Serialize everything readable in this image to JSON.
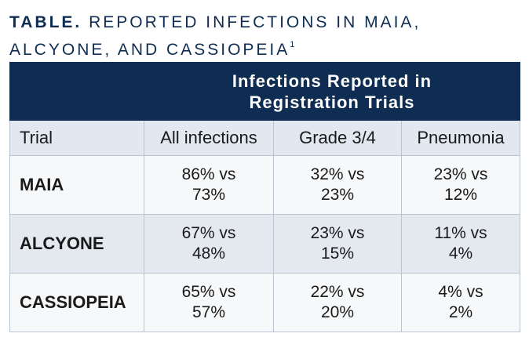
{
  "caption": {
    "lead": "TABLE.",
    "title": "REPORTED INFECTIONS IN MAIA, ALCYONE, AND CASSIOPEIA",
    "footnote": "1"
  },
  "table": {
    "group_header": "Infections Reported in Registration Trials",
    "columns": [
      "Trial",
      "All infections",
      "Grade 3/4",
      "Pneumonia"
    ],
    "rows": [
      {
        "trial": "MAIA",
        "all": "86% vs 73%",
        "grade34": "32% vs 23%",
        "pneumonia": "23% vs 12%"
      },
      {
        "trial": "ALCYONE",
        "all": "67% vs 48%",
        "grade34": "23% vs 15%",
        "pneumonia": "11% vs 4%"
      },
      {
        "trial": "CASSIOPEIA",
        "all": "65% vs 57%",
        "grade34": "22% vs 20%",
        "pneumonia": "4% vs 2%"
      }
    ]
  },
  "colors": {
    "header_band": "#0f2d52",
    "caption_text": "#0f2d52",
    "row_light": "#f6f8fa",
    "row_dark": "#e4e9f0",
    "grid_line": "#b9c4d0"
  }
}
